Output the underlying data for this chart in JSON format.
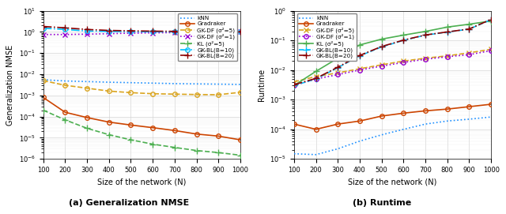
{
  "x": [
    100,
    200,
    300,
    400,
    500,
    600,
    700,
    800,
    900,
    1000
  ],
  "left": {
    "kNN": [
      0.0055,
      0.0048,
      0.0045,
      0.0042,
      0.004,
      0.0038,
      0.0036,
      0.0035,
      0.0034,
      0.0033
    ],
    "Gradraker": [
      0.0008,
      0.00016,
      9e-05,
      5.5e-05,
      4e-05,
      3e-05,
      2.2e-05,
      1.5e-05,
      1.2e-05,
      8e-06
    ],
    "GK_DF_5": [
      0.005,
      0.003,
      0.0022,
      0.0016,
      0.00135,
      0.0012,
      0.00115,
      0.0011,
      0.00108,
      0.0014
    ],
    "GK_DF_1": [
      0.75,
      0.75,
      0.78,
      0.82,
      0.87,
      0.9,
      0.93,
      0.96,
      0.98,
      1.0
    ],
    "KL_5": [
      0.0002,
      7e-05,
      2.8e-05,
      1.4e-05,
      8e-06,
      5e-06,
      3.5e-06,
      2.5e-06,
      2e-06,
      1.5e-06
    ],
    "GK_BL_10": [
      1.5,
      1.3,
      1.1,
      1.05,
      1.02,
      1.01,
      1.005,
      1.003,
      1.001,
      1.0
    ],
    "GK_BL_20": [
      1.8,
      1.55,
      1.3,
      1.17,
      1.12,
      1.08,
      1.06,
      1.04,
      1.03,
      1.02
    ]
  },
  "right": {
    "kNN": [
      1.5e-05,
      1.4e-05,
      2.2e-05,
      4e-05,
      6.5e-05,
      0.0001,
      0.00015,
      0.00019,
      0.00022,
      0.00026
    ],
    "Gradraker": [
      0.00015,
      0.0001,
      0.00015,
      0.00019,
      0.00028,
      0.00035,
      0.00042,
      0.00048,
      0.00058,
      0.0007
    ],
    "GK_DF_5": [
      0.004,
      0.006,
      0.008,
      0.011,
      0.015,
      0.02,
      0.025,
      0.03,
      0.038,
      0.05
    ],
    "GK_DF_1": [
      0.003,
      0.005,
      0.007,
      0.01,
      0.0135,
      0.018,
      0.023,
      0.028,
      0.033,
      0.045
    ],
    "KL_5": [
      0.003,
      0.009,
      0.025,
      0.07,
      0.11,
      0.15,
      0.2,
      0.28,
      0.35,
      0.45
    ],
    "GK_BL_10": [
      0.003,
      0.005,
      0.012,
      0.03,
      0.06,
      0.1,
      0.15,
      0.19,
      0.24,
      0.5
    ],
    "GK_BL_20": [
      0.0032,
      0.0052,
      0.0125,
      0.031,
      0.062,
      0.102,
      0.152,
      0.192,
      0.242,
      0.51
    ]
  },
  "colors": {
    "kNN": "#1e90ff",
    "Gradraker": "#cc4400",
    "GK_DF_5": "#daa520",
    "GK_DF_1": "#9400d3",
    "KL_5": "#4caf50",
    "GK_BL_10": "#00bfff",
    "GK_BL_20": "#8b0000"
  },
  "legend_labels": {
    "kNN": "kNN",
    "Gradraker": "Gradraker",
    "GK_DF_5": "GK-DF (σ²=5)",
    "GK_DF_1": "GK-DF (σ²=1)",
    "KL_5": "KL (σ²=5)",
    "GK_BL_10": "GK-BL(B=10)",
    "GK_BL_20": "GK-BL(B=20)"
  },
  "xlabel": "Size of the network (N)",
  "ylabel_left": "Generalization NMSE",
  "ylabel_right": "Runtime",
  "title_left": "(a) Generalization NMSE",
  "title_right": "(b) Runtime",
  "left_ylim": [
    1e-06,
    10.0
  ],
  "right_ylim": [
    1e-05,
    1.0
  ],
  "xticks": [
    100,
    200,
    300,
    400,
    500,
    600,
    700,
    800,
    900,
    1000
  ]
}
